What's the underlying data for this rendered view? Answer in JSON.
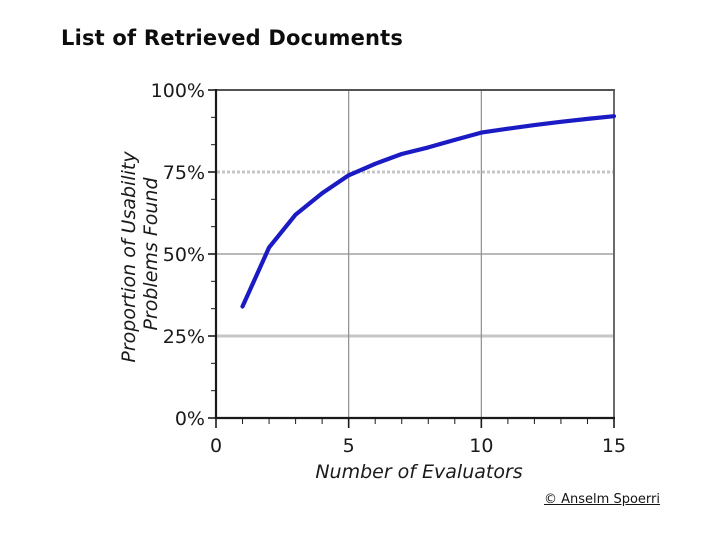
{
  "title": "List of Retrieved Documents",
  "footer": {
    "credit": "© Anselm Spoerri"
  },
  "colors": {
    "curve_blue": "#1b1bc4",
    "gridline_light": "#c6c6c6",
    "gridline_mid": "#8f8f8f",
    "axis_dark": "#1a1a1a",
    "frame_gray": "#5a5a5a",
    "text": "#1a1a1a",
    "background": "#ffffff"
  },
  "chart_data": {
    "type": "line",
    "title": "",
    "xlabel": "Number of Evaluators",
    "ylabel": "Proportion of Usability Problems Found",
    "ylabel_lines": [
      "Proportion of Usability",
      "Problems Found"
    ],
    "xlim": [
      0,
      15
    ],
    "ylim": [
      0,
      100
    ],
    "x_ticks": [
      0,
      5,
      10,
      15
    ],
    "x_tick_labels": [
      "0",
      "5",
      "10",
      "15"
    ],
    "x_minor_tick_step": 1,
    "y_ticks": [
      0,
      25,
      50,
      75,
      100
    ],
    "y_tick_labels": [
      "0%",
      "25%",
      "50%",
      "75%",
      "100%"
    ],
    "y_minor_ticks_per_interval": 2,
    "grid": {
      "horizontal": [
        {
          "value": 25,
          "weight": "thick",
          "dashed": false
        },
        {
          "value": 50,
          "weight": "thin",
          "dashed": false
        },
        {
          "value": 75,
          "weight": "thick",
          "dashed": true
        }
      ],
      "vertical": [
        {
          "value": 5,
          "weight": "thin"
        },
        {
          "value": 10,
          "weight": "thin"
        }
      ]
    },
    "x": [
      1,
      2,
      3,
      4,
      5,
      6,
      7,
      8,
      9,
      10,
      11,
      12,
      13,
      14,
      15
    ],
    "series": [
      {
        "name": "proportion-of-problems-found",
        "values": [
          34,
          52,
          62,
          68.5,
          74,
          77.5,
          80.5,
          82.5,
          84.8,
          87,
          88.2,
          89.3,
          90.3,
          91.2,
          92
        ],
        "color": "#1b1bc4"
      }
    ],
    "legend": "none"
  }
}
